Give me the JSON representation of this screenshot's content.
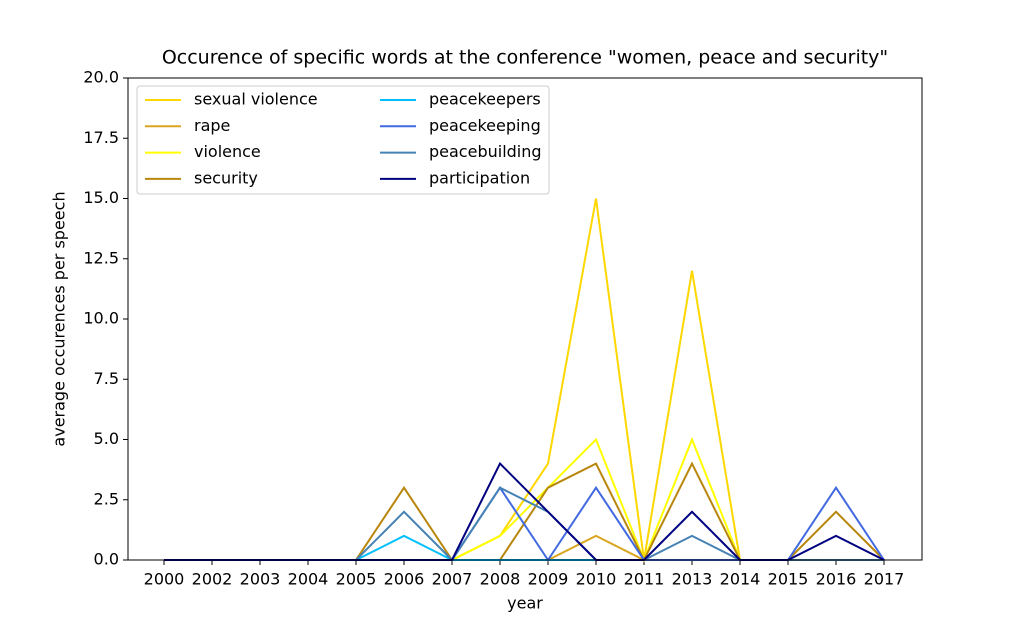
{
  "chart_data": {
    "type": "line",
    "title": "Occurence of specific words at the conference \"women, peace and security\"",
    "x_label": "year",
    "y_label": "average occurences per speech",
    "categories": [
      "2000",
      "2002",
      "2003",
      "2004",
      "2005",
      "2006",
      "2007",
      "2008",
      "2009",
      "2010",
      "2011",
      "2013",
      "2014",
      "2015",
      "2016",
      "2017"
    ],
    "ylim": [
      0,
      20
    ],
    "yticks": [
      {
        "value": 0,
        "label": "0.0"
      },
      2.5,
      {
        "value": 5,
        "label": "5.0"
      },
      7.5,
      {
        "value": 10,
        "label": "10.0"
      },
      12.5,
      {
        "value": 15,
        "label": "15.0"
      },
      17.5,
      {
        "value": 20,
        "label": "20.0"
      }
    ],
    "legend": "upper left",
    "series": [
      {
        "name": "sexual violence",
        "color": "#ffd700",
        "values": [
          0,
          0,
          0,
          0,
          0,
          0,
          0,
          1,
          4,
          15,
          0,
          12,
          0,
          0,
          0,
          0
        ]
      },
      {
        "name": "rape",
        "color": "#daa520",
        "values": [
          0,
          0,
          0,
          0,
          0,
          0,
          0,
          0,
          0,
          1,
          0,
          0,
          0,
          0,
          0,
          0
        ]
      },
      {
        "name": "violence",
        "color": "#ffff00",
        "values": [
          0,
          0,
          0,
          0,
          0,
          0,
          0,
          1,
          3,
          5,
          0,
          5,
          0,
          0,
          0,
          0
        ]
      },
      {
        "name": "security",
        "color": "#b8860b",
        "values": [
          0,
          0,
          0,
          0,
          0,
          3,
          0,
          0,
          3,
          4,
          0,
          4,
          0,
          0,
          2,
          0
        ]
      },
      {
        "name": "peacekeepers",
        "color": "#00bfff",
        "values": [
          0,
          0,
          0,
          0,
          0,
          1,
          0,
          0,
          0,
          0,
          0,
          0,
          0,
          0,
          0,
          0
        ]
      },
      {
        "name": "peacekeeping",
        "color": "#4169e1",
        "values": [
          0,
          0,
          0,
          0,
          0,
          0,
          0,
          3,
          0,
          3,
          0,
          0,
          0,
          0,
          3,
          0
        ]
      },
      {
        "name": "peacebuilding",
        "color": "#4682b4",
        "values": [
          0,
          0,
          0,
          0,
          0,
          2,
          0,
          3,
          2,
          0,
          0,
          1,
          0,
          0,
          0,
          0
        ]
      },
      {
        "name": "participation",
        "color": "#000080",
        "values": [
          0,
          0,
          0,
          0,
          0,
          0,
          0,
          4,
          2,
          0,
          0,
          2,
          0,
          0,
          1,
          0
        ]
      }
    ]
  }
}
